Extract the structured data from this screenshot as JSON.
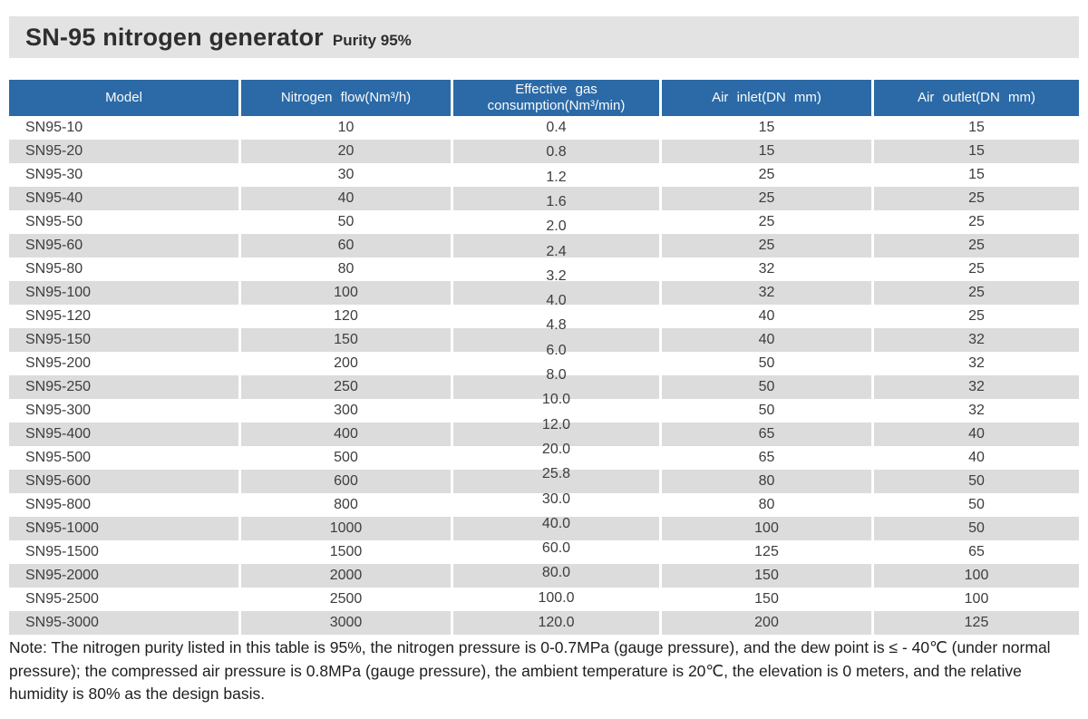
{
  "header": {
    "title": "SN-95 nitrogen generator",
    "subtitle": "Purity 95%"
  },
  "table": {
    "columns": [
      {
        "id": "model",
        "lines": [
          "Model"
        ]
      },
      {
        "id": "nitrogen-flow",
        "lines": [
          "Nitrogen flow(Nm³/h)"
        ]
      },
      {
        "id": "effective-gas-consumption",
        "lines": [
          "Effective gas",
          "consumption(Nm³/min)"
        ]
      },
      {
        "id": "air-inlet",
        "lines": [
          "Air inlet(DN mm)"
        ]
      },
      {
        "id": "air-outlet",
        "lines": [
          "Air outlet(DN mm)"
        ]
      }
    ],
    "rows": [
      {
        "model": "SN95-10",
        "nitrogen_flow": "10",
        "air_inlet": "15",
        "air_outlet": "15"
      },
      {
        "model": "SN95-20",
        "nitrogen_flow": "20",
        "air_inlet": "15",
        "air_outlet": "15"
      },
      {
        "model": "SN95-30",
        "nitrogen_flow": "30",
        "air_inlet": "25",
        "air_outlet": "15"
      },
      {
        "model": "SN95-40",
        "nitrogen_flow": "40",
        "air_inlet": "25",
        "air_outlet": "25"
      },
      {
        "model": "SN95-50",
        "nitrogen_flow": "50",
        "air_inlet": "25",
        "air_outlet": "25"
      },
      {
        "model": "SN95-60",
        "nitrogen_flow": "60",
        "air_inlet": "25",
        "air_outlet": "25"
      },
      {
        "model": "SN95-80",
        "nitrogen_flow": "80",
        "air_inlet": "32",
        "air_outlet": "25"
      },
      {
        "model": "SN95-100",
        "nitrogen_flow": "100",
        "air_inlet": "32",
        "air_outlet": "25"
      },
      {
        "model": "SN95-120",
        "nitrogen_flow": "120",
        "air_inlet": "40",
        "air_outlet": "25"
      },
      {
        "model": "SN95-150",
        "nitrogen_flow": "150",
        "air_inlet": "40",
        "air_outlet": "32"
      },
      {
        "model": "SN95-200",
        "nitrogen_flow": "200",
        "air_inlet": "50",
        "air_outlet": "32"
      },
      {
        "model": "SN95-250",
        "nitrogen_flow": "250",
        "air_inlet": "50",
        "air_outlet": "32"
      },
      {
        "model": "SN95-300",
        "nitrogen_flow": "300",
        "air_inlet": "50",
        "air_outlet": "32"
      },
      {
        "model": "SN95-400",
        "nitrogen_flow": "400",
        "air_inlet": "65",
        "air_outlet": "40"
      },
      {
        "model": "SN95-500",
        "nitrogen_flow": "500",
        "air_inlet": "65",
        "air_outlet": "40"
      },
      {
        "model": "SN95-600",
        "nitrogen_flow": "600",
        "air_inlet": "80",
        "air_outlet": "50"
      },
      {
        "model": "SN95-800",
        "nitrogen_flow": "800",
        "air_inlet": "80",
        "air_outlet": "50"
      },
      {
        "model": "SN95-1000",
        "nitrogen_flow": "1000",
        "air_inlet": "100",
        "air_outlet": "50"
      },
      {
        "model": "SN95-1500",
        "nitrogen_flow": "1500",
        "air_inlet": "125",
        "air_outlet": "65"
      },
      {
        "model": "SN95-2000",
        "nitrogen_flow": "2000",
        "air_inlet": "150",
        "air_outlet": "100"
      },
      {
        "model": "SN95-2500",
        "nitrogen_flow": "2500",
        "air_inlet": "150",
        "air_outlet": "100"
      },
      {
        "model": "SN95-3000",
        "nitrogen_flow": "3000",
        "air_inlet": "200",
        "air_outlet": "125"
      }
    ],
    "consumption_values": [
      "0.4",
      "0.8",
      "1.2",
      "1.6",
      "2.0",
      "2.4",
      "3.2",
      "4.0",
      "4.8",
      "6.0",
      "8.0",
      "10.0",
      "12.0",
      "20.0",
      "25.8",
      "30.0",
      "40.0",
      "60.0",
      "80.0",
      "100.0",
      "120.0"
    ]
  },
  "note": "Note: The nitrogen purity listed in this table is 95%, the nitrogen pressure is 0-0.7MPa (gauge pressure), and the dew point is ≤ - 40℃ (under normal pressure); the compressed air pressure is 0.8MPa (gauge pressure), the ambient temperature is 20℃, the elevation is 0 meters, and the relative humidity is 80% as the design basis.",
  "colors": {
    "header_bg": "#2b6aa7",
    "stripe_bg": "#dcdcdc",
    "title_bar_bg": "#e3e3e3"
  }
}
